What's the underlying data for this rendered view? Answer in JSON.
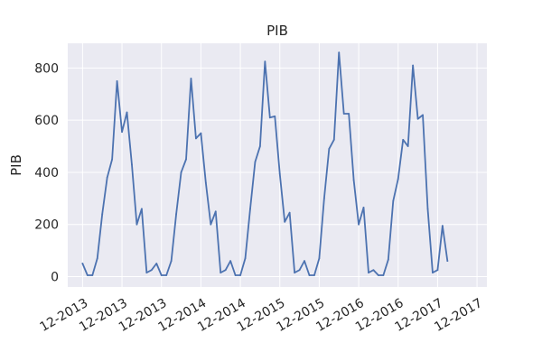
{
  "chart_data": {
    "type": "line",
    "title": "PIB",
    "xlabel": "",
    "ylabel": "PIB",
    "ylim": [
      -40,
      895
    ],
    "yticks": [
      0,
      200,
      400,
      600,
      800
    ],
    "xlim": [
      -3,
      82
    ],
    "xticks": [
      {
        "x": 0,
        "label": "12-2013"
      },
      {
        "x": 8,
        "label": "12-2013"
      },
      {
        "x": 16,
        "label": "12-2013"
      },
      {
        "x": 24,
        "label": "12-2014"
      },
      {
        "x": 32,
        "label": "12-2014"
      },
      {
        "x": 40,
        "label": "12-2015"
      },
      {
        "x": 48,
        "label": "12-2015"
      },
      {
        "x": 56,
        "label": "12-2016"
      },
      {
        "x": 64,
        "label": "12-2016"
      },
      {
        "x": 72,
        "label": "12-2017"
      },
      {
        "x": 80,
        "label": "12-2017"
      }
    ],
    "grid": true,
    "colors": {
      "line": "#4c72b0",
      "plot_bg": "#eaeaf2",
      "grid": "#ffffff"
    },
    "series": [
      {
        "values": [
          50,
          5,
          5,
          70,
          240,
          380,
          450,
          750,
          555,
          630,
          430,
          200,
          260,
          15,
          25,
          50,
          5,
          5,
          60,
          240,
          400,
          450,
          760,
          530,
          550,
          360,
          200,
          250,
          15,
          25,
          60,
          5,
          5,
          70,
          260,
          440,
          500,
          825,
          610,
          615,
          395,
          210,
          245,
          15,
          25,
          60,
          5,
          5,
          70,
          300,
          490,
          525,
          860,
          625,
          625,
          370,
          200,
          265,
          15,
          25,
          5,
          5,
          65,
          290,
          375,
          525,
          500,
          810,
          605,
          620,
          260,
          15,
          25,
          195,
          60
        ]
      }
    ]
  }
}
